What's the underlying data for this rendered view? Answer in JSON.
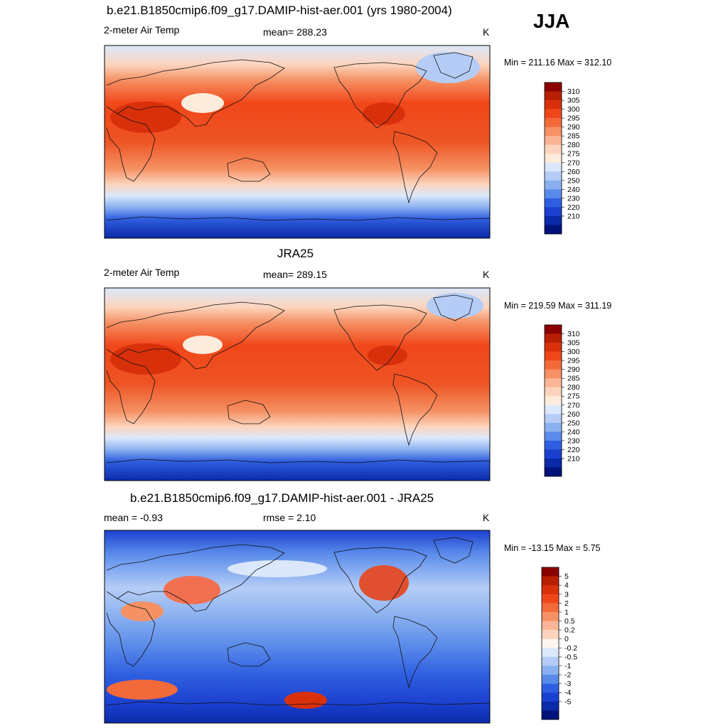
{
  "season": "JJA",
  "panels": [
    {
      "title": "b.e21.B1850cmip6.f09_g17.DAMIP-hist-aer.001 (yrs 1980-2004)",
      "left_label": "2-meter Air Temp",
      "center_label": "mean= 288.23",
      "unit": "K",
      "minmax": "Min = 211.16 Max = 312.10",
      "colorbar": {
        "labels": [
          "310",
          "305",
          "300",
          "295",
          "290",
          "285",
          "280",
          "275",
          "270",
          "260",
          "250",
          "240",
          "230",
          "220",
          "210"
        ],
        "colors": [
          "#8b0000",
          "#b81f02",
          "#d9300c",
          "#f0471a",
          "#f26a3a",
          "#f59164",
          "#f9b596",
          "#fcd4bd",
          "#fdebdc",
          "#dbe8fb",
          "#b5cdf6",
          "#8ab0f0",
          "#5a8bea",
          "#2f5fe0",
          "#1b40cf",
          "#0b2aa8",
          "#00137a"
        ]
      },
      "map_type": "absolute"
    },
    {
      "title": "JRA25",
      "left_label": "2-meter Air Temp",
      "center_label": "mean= 289.15",
      "unit": "K",
      "minmax": "Min = 219.59 Max = 311.19",
      "colorbar": {
        "labels": [
          "310",
          "305",
          "300",
          "295",
          "290",
          "285",
          "280",
          "275",
          "270",
          "260",
          "250",
          "240",
          "230",
          "220",
          "210"
        ],
        "colors": [
          "#8b0000",
          "#b81f02",
          "#d9300c",
          "#f0471a",
          "#f26a3a",
          "#f59164",
          "#f9b596",
          "#fcd4bd",
          "#fdebdc",
          "#dbe8fb",
          "#b5cdf6",
          "#8ab0f0",
          "#5a8bea",
          "#2f5fe0",
          "#1b40cf",
          "#0b2aa8",
          "#00137a"
        ]
      },
      "map_type": "absolute"
    },
    {
      "title": "b.e21.B1850cmip6.f09_g17.DAMIP-hist-aer.001 - JRA25",
      "left_label": "mean =  -0.93",
      "center_label": "rmse =   2.10",
      "unit": "K",
      "minmax": "Min = -13.15 Max =   5.75",
      "colorbar": {
        "labels": [
          "5",
          "4",
          "3",
          "2",
          "1",
          "0.5",
          "0.2",
          "0",
          "-0.2",
          "-0.5",
          "-1",
          "-2",
          "-3",
          "-4",
          "-5"
        ],
        "colors": [
          "#8b0000",
          "#b81f02",
          "#d9300c",
          "#f0471a",
          "#f26a3a",
          "#f59164",
          "#f9b596",
          "#fcd4bd",
          "#fdf5ee",
          "#dbe8fb",
          "#b5cdf6",
          "#8ab0f0",
          "#5a8bea",
          "#2f5fe0",
          "#1b40cf",
          "#0b2aa8",
          "#00137a"
        ]
      },
      "map_type": "difference"
    }
  ]
}
